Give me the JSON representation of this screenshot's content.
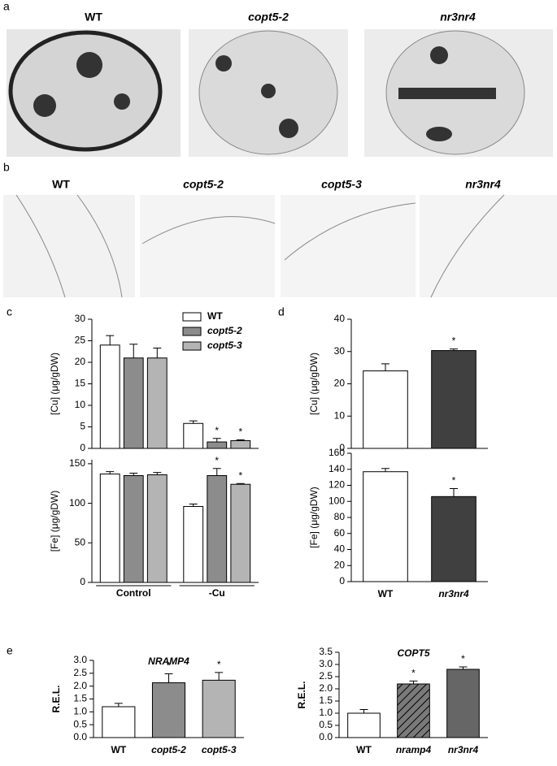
{
  "panel_labels": [
    "a",
    "b",
    "c",
    "d",
    "e"
  ],
  "micrographs_a": [
    "WT",
    "copt5-2",
    "nr3nr4"
  ],
  "micrographs_b": [
    "WT",
    "copt5-2",
    "copt5-3",
    "nr3nr4"
  ],
  "chart_data": [
    {
      "type": "bar",
      "ylabel": "[Cu] (μg/gDW)",
      "ylim": [
        0,
        30
      ],
      "yticks": [
        0,
        5,
        10,
        15,
        20,
        25,
        30
      ],
      "legend": true,
      "series": [
        {
          "name": "WT",
          "color": "#ffffff",
          "values": [
            24,
            5.8
          ],
          "errors": [
            2.2,
            0.6
          ],
          "significance": [
            null,
            null
          ]
        },
        {
          "name": "copt5-2",
          "color": "#8c8c8c",
          "values": [
            21,
            1.5
          ],
          "errors": [
            3.2,
            0.8
          ],
          "significance": [
            null,
            "*"
          ]
        },
        {
          "name": "copt5-3",
          "color": "#b4b4b4",
          "values": [
            21,
            1.8
          ],
          "errors": [
            2.3,
            0.2
          ],
          "significance": [
            null,
            "*"
          ]
        }
      ]
    },
    {
      "type": "bar",
      "ylabel": "[Fe] (μg/gDW)",
      "ylim": [
        0,
        155
      ],
      "yticks": [
        0,
        50,
        100,
        150
      ],
      "legend": false,
      "categories": [
        "Control",
        "-Cu"
      ],
      "series": [
        {
          "color": "#ffffff",
          "values": [
            137,
            96
          ],
          "errors": [
            3,
            3
          ],
          "significance": [
            null,
            null
          ]
        },
        {
          "color": "#8c8c8c",
          "values": [
            135,
            135
          ],
          "errors": [
            3,
            9
          ],
          "significance": [
            null,
            "*"
          ]
        },
        {
          "color": "#b4b4b4",
          "values": [
            136,
            124
          ],
          "errors": [
            3,
            1
          ],
          "significance": [
            null,
            "*"
          ]
        }
      ]
    },
    {
      "type": "bar",
      "ylabel": "[Cu] (μg/gDW)",
      "ylim": [
        0,
        40
      ],
      "yticks": [
        0,
        10,
        20,
        30,
        40
      ],
      "values": [
        24,
        30.3
      ],
      "errors": [
        2.2,
        0.5
      ],
      "colors": [
        "#ffffff",
        "#404040"
      ],
      "significance": [
        null,
        "*"
      ]
    },
    {
      "type": "bar",
      "ylabel": "[Fe] (μg/gDW)",
      "ylim": [
        0,
        160
      ],
      "yticks": [
        0,
        20,
        40,
        60,
        80,
        100,
        120,
        140,
        160
      ],
      "categories": [
        "WT",
        "nr3nr4"
      ],
      "values": [
        137,
        106
      ],
      "errors": [
        4,
        10
      ],
      "colors": [
        "#ffffff",
        "#404040"
      ],
      "significance": [
        null,
        "*"
      ]
    },
    {
      "type": "bar",
      "title": "NRAMP4",
      "ylabel": "R.E.L.",
      "ylim": [
        0,
        3
      ],
      "yticks": [
        {
          "value": 0,
          "label": "0.0"
        },
        {
          "value": 0.5,
          "label": "0.5"
        },
        {
          "value": 1,
          "label": "1.0"
        },
        {
          "value": 1.5,
          "label": "1.5"
        },
        {
          "value": 2,
          "label": "2.0"
        },
        {
          "value": 2.5,
          "label": "2.5"
        },
        {
          "value": 3,
          "label": "3.0"
        }
      ],
      "categories": [
        "WT",
        "copt5-2",
        "copt5-3"
      ],
      "values": [
        1.2,
        2.13,
        2.23
      ],
      "errors": [
        0.13,
        0.35,
        0.3
      ],
      "colors": [
        "#ffffff",
        "#8c8c8c",
        "#b4b4b4"
      ],
      "significance": [
        null,
        "*",
        "*"
      ]
    },
    {
      "type": "bar",
      "title": "COPT5",
      "ylabel": "R.E.L.",
      "ylim": [
        0,
        3.5
      ],
      "yticks": [
        {
          "value": 0,
          "label": "0.0"
        },
        {
          "value": 0.5,
          "label": "0.5"
        },
        {
          "value": 1,
          "label": "1.0"
        },
        {
          "value": 1.5,
          "label": "1.5"
        },
        {
          "value": 2,
          "label": "2.0"
        },
        {
          "value": 2.5,
          "label": "2.5"
        },
        {
          "value": 3,
          "label": "3.0"
        },
        {
          "value": 3.5,
          "label": "3.5"
        }
      ],
      "categories": [
        "WT",
        "nramp4",
        "nr3nr4"
      ],
      "values": [
        1.0,
        2.2,
        2.8
      ],
      "errors": [
        0.15,
        0.12,
        0.1
      ],
      "colors": [
        "#ffffff",
        "#6e6e6e",
        "#666666"
      ],
      "hatched": [
        false,
        true,
        false
      ],
      "significance": [
        null,
        "*",
        "*"
      ]
    }
  ]
}
